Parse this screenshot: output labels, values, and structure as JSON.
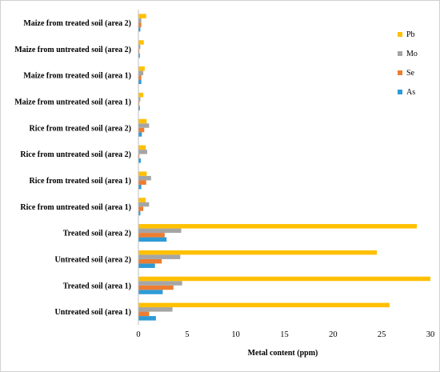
{
  "chart_data": {
    "type": "bar",
    "orientation": "horizontal",
    "categories": [
      "Untreated soil (area 1)",
      "Treated soil (area 1)",
      "Untreated soil (area 2)",
      "Treated soil (area 2)",
      "Rice from untreated soil (area 1)",
      "Rice from treated soil (area 1)",
      "Rice from untreated soil (area 2)",
      "Rice from treated soil (area 2)",
      "Maize from untreated soil (area 1)",
      "Maize from treated soil (area 1)",
      "Maize from untreated soil (area 2)",
      "Maize from treated soil (area 2)"
    ],
    "series": [
      {
        "name": "As",
        "color": "#2E9BD6",
        "values": [
          1.8,
          2.5,
          1.7,
          2.9,
          0.2,
          0.3,
          0.25,
          0.35,
          0.15,
          0.3,
          0.15,
          0.2
        ]
      },
      {
        "name": "Se",
        "color": "#ED7D31",
        "values": [
          1.1,
          3.6,
          2.4,
          2.7,
          0.5,
          0.8,
          0.1,
          0.6,
          0.1,
          0.3,
          0.1,
          0.3
        ]
      },
      {
        "name": "Mo",
        "color": "#A5A5A5",
        "values": [
          3.5,
          4.5,
          4.3,
          4.4,
          1.1,
          1.3,
          0.9,
          1.1,
          0.2,
          0.5,
          0.2,
          0.3
        ]
      },
      {
        "name": "Pb",
        "color": "#FFC000",
        "values": [
          25.8,
          30.0,
          24.5,
          28.6,
          0.75,
          0.85,
          0.75,
          0.85,
          0.5,
          0.65,
          0.55,
          0.8
        ]
      }
    ],
    "legend_order": [
      "Pb",
      "Mo",
      "Se",
      "As"
    ],
    "xlabel": "Metal content (ppm)",
    "ylabel": "",
    "xlim": [
      0,
      30
    ],
    "xticks": [
      "0",
      "5",
      "10",
      "15",
      "20",
      "25",
      "30"
    ],
    "grid": false,
    "legend_position": "top-right"
  }
}
